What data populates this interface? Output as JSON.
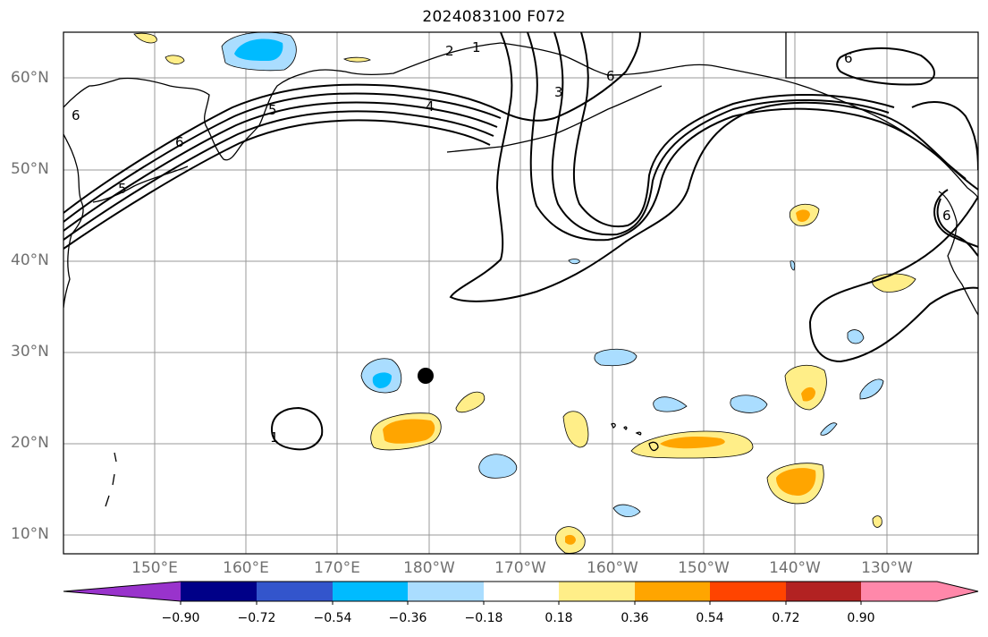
{
  "title": "2024083100 F072",
  "map_data": {
    "type": "filled-contour map with line contours",
    "lat_labels": [
      "60°N",
      "50°N",
      "40°N",
      "30°N",
      "20°N",
      "10°N"
    ],
    "lon_labels": [
      "150°E",
      "160°E",
      "170°E",
      "180°W",
      "170°W",
      "160°W",
      "150°W",
      "140°W",
      "130°W"
    ],
    "contour_labels": [
      "6",
      "5",
      "4",
      "3",
      "2",
      "1"
    ],
    "fill_features": [
      "Bering Sea / Alaska anomaly",
      "subtropical anomaly patches"
    ]
  },
  "colorbar": {
    "tick_labels": [
      "−0.90",
      "−0.72",
      "−0.54",
      "−0.36",
      "−0.18",
      "0.18",
      "0.36",
      "0.54",
      "0.72",
      "0.90"
    ],
    "colors": [
      "#9933cc",
      "#000088",
      "#3355cc",
      "#00bbff",
      "#aaddff",
      "#ffffff",
      "#ffee88",
      "#ffa500",
      "#ff4400",
      "#b22222",
      "#ff88aa"
    ]
  }
}
